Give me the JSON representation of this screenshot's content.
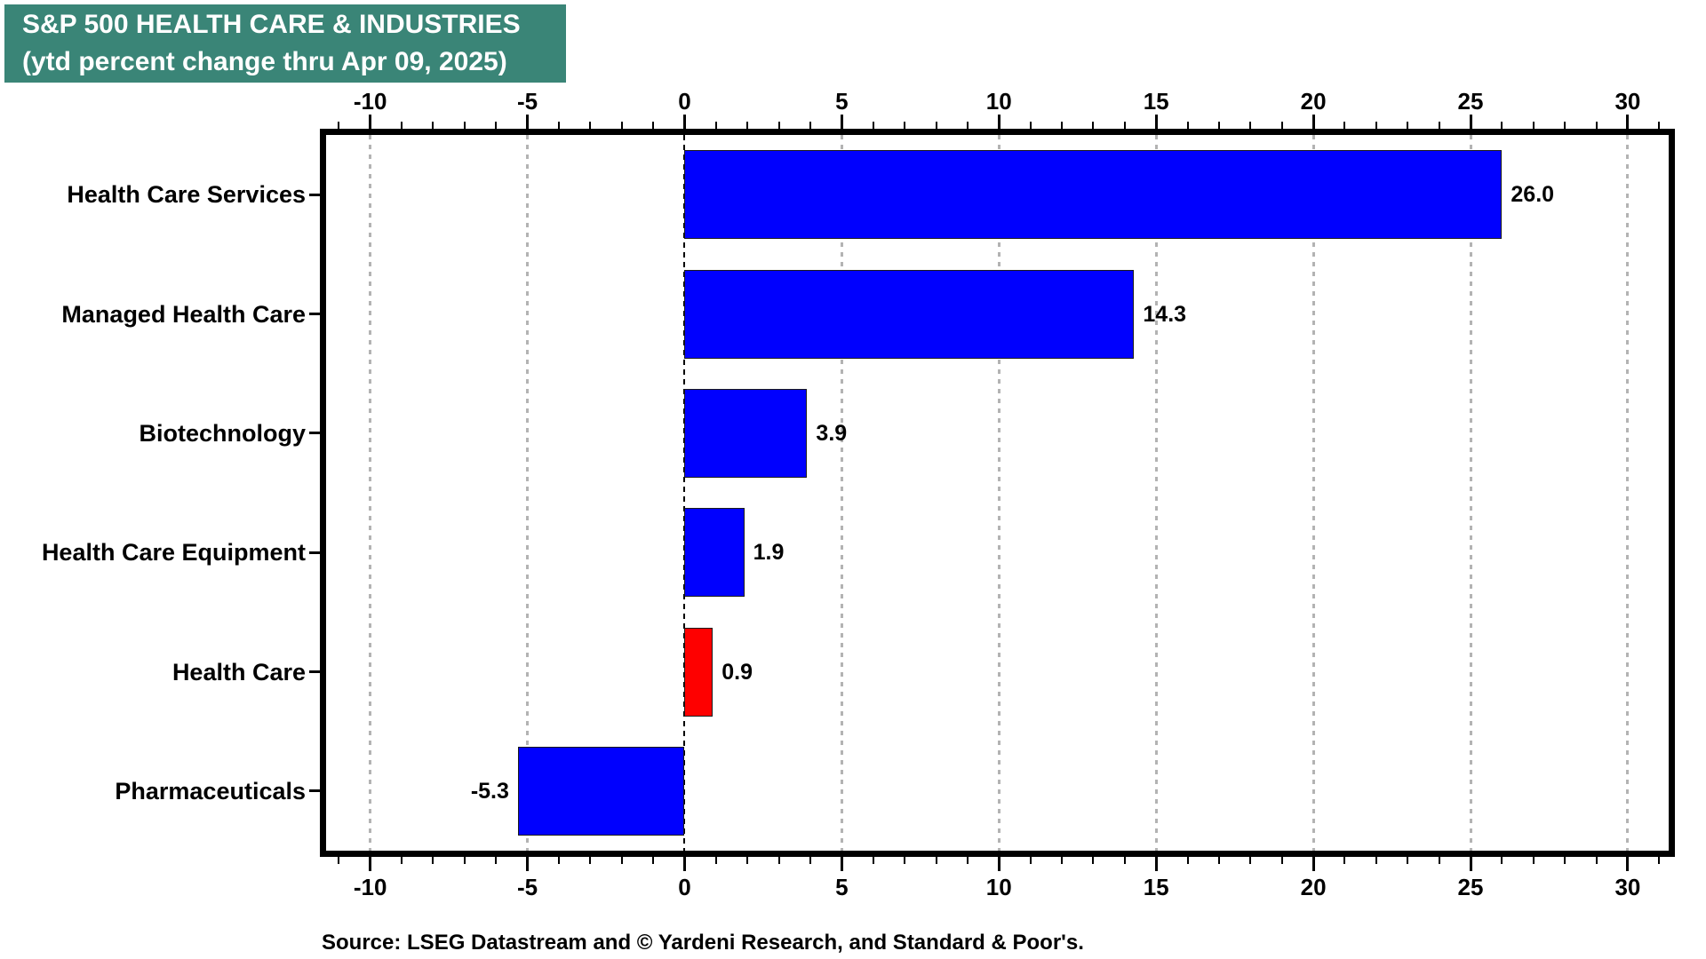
{
  "title_box": {
    "bg_color": "#3a8577",
    "text_color": "#ffffff",
    "title": "S&P 500 HEALTH CARE & INDUSTRIES",
    "subtitle": "(ytd percent change thru Apr 09, 2025)"
  },
  "chart_data": {
    "type": "bar",
    "orientation": "horizontal",
    "title": "S&P 500 HEALTH CARE & INDUSTRIES",
    "subtitle": "(ytd percent change thru Apr 09, 2025)",
    "categories": [
      "Health Care Services",
      "Managed Health Care",
      "Biotechnology",
      "Health Care Equipment",
      "Health Care",
      "Pharmaceuticals"
    ],
    "values": [
      26.0,
      14.3,
      3.9,
      1.9,
      0.9,
      -5.3
    ],
    "value_labels": [
      "26.0",
      "14.3",
      "3.9",
      "1.9",
      "0.9",
      "-5.3"
    ],
    "bar_colors": [
      "#0000fe",
      "#0000fe",
      "#0000fe",
      "#0000fe",
      "#fe0000",
      "#0000fe"
    ],
    "xlim": [
      -11.6,
      31.5
    ],
    "x_major_ticks": [
      -10,
      -5,
      0,
      5,
      10,
      15,
      20,
      25,
      30
    ],
    "x_minor_step": 1,
    "grid": "vertical dotted gray at major ticks, dashed black line at zero",
    "axis_tick_sides": "top and bottom, ticks outside",
    "legend": "none",
    "colors": {
      "grid": "#b3b3b3",
      "axis": "#000000",
      "positive_bar": "#0000fe",
      "highlight_bar": "#fe0000"
    }
  },
  "source": {
    "text": "Source: LSEG Datastream and © Yardeni Research, and Standard & Poor's."
  }
}
